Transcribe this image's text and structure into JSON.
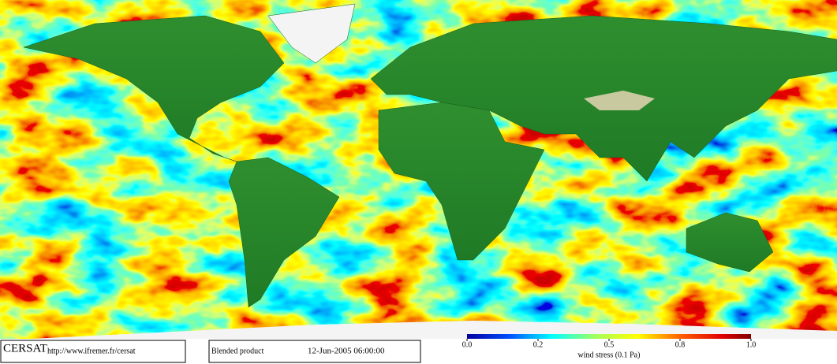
{
  "branding": {
    "name": "CERSAT",
    "url": "http://www.ifremer.fr/cersat"
  },
  "product": "Blended product",
  "timestamp": "12-Jun-2005 06:00:00",
  "colorbar": {
    "label": "wind stress (0.1 Pa)",
    "ticks": [
      {
        "value": 0,
        "label": "0.0"
      },
      {
        "value": 0.2,
        "label": "0.2"
      },
      {
        "value": 0.5,
        "label": "0.5"
      },
      {
        "value": 0.8,
        "label": "0.8"
      },
      {
        "value": 1,
        "label": "1.0"
      }
    ]
  }
}
